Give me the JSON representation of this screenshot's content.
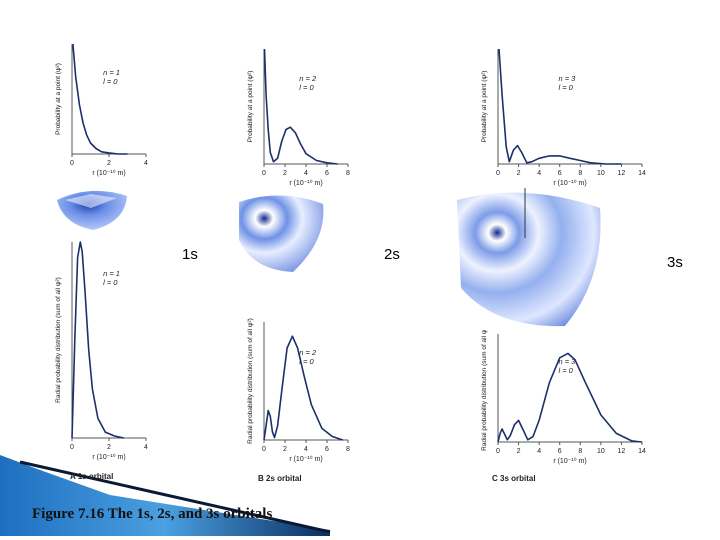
{
  "orbital_titles": {
    "s1": "1s",
    "s2": "2s",
    "s3": "3s"
  },
  "figure_caption": "Figure 7.16 The 1s, 2s, and 3s orbitals",
  "panel_captions": {
    "a_letter": "A",
    "a_text": "1s orbital",
    "b_letter": "B",
    "b_text": "2s orbital",
    "c_letter": "C",
    "c_text": "3s orbital"
  },
  "axis": {
    "prob_ylabel": "Probability at a point (ψ²)",
    "radial_ylabel_1s": "Radial probability distribution (sum of all ψ²)",
    "radial_ylabel_2s": "Radial probability distribution (sum of all ψ²)",
    "radial_ylabel_3s": "Radial probability distribution (sum of all ψ²)",
    "xlabel": "r (10⁻¹⁰ m)"
  },
  "quantum_numbers": {
    "s1": {
      "n": "n = 1",
      "l": "l = 0"
    },
    "s2": {
      "n": "n = 2",
      "l": "l = 0"
    },
    "s3": {
      "n": "n = 3",
      "l": "l = 0"
    }
  },
  "colors": {
    "curve": "#1b2f6b",
    "orbital_light": "#eef2ff",
    "orbital_dark": "#2a53c9",
    "band": "#1e6fc0"
  },
  "chart_data": [
    {
      "id": "prob-1s",
      "type": "line",
      "title": "",
      "xlabel": "r (10⁻¹⁰ m)",
      "ylabel": "Probability at a point (ψ²)",
      "xlim": [
        0,
        4
      ],
      "xticks": [
        0,
        2,
        4
      ],
      "x": [
        0.05,
        0.2,
        0.4,
        0.6,
        0.8,
        1.0,
        1.3,
        1.6,
        2.0,
        2.5,
        3.0
      ],
      "y": [
        1.0,
        0.7,
        0.45,
        0.28,
        0.17,
        0.1,
        0.05,
        0.02,
        0.01,
        0.0,
        0.0
      ]
    },
    {
      "id": "prob-2s",
      "type": "line",
      "title": "",
      "xlabel": "r (10⁻¹⁰ m)",
      "ylabel": "Probability at a point (ψ²)",
      "xlim": [
        0,
        8
      ],
      "xticks": [
        0,
        2,
        4,
        6,
        8
      ],
      "x": [
        0.05,
        0.2,
        0.4,
        0.6,
        0.9,
        1.3,
        1.7,
        2.1,
        2.5,
        3.0,
        3.5,
        4.0,
        5.0,
        6.0,
        7.0
      ],
      "y": [
        1.0,
        0.6,
        0.3,
        0.1,
        0.02,
        0.05,
        0.2,
        0.3,
        0.32,
        0.27,
        0.17,
        0.09,
        0.03,
        0.01,
        0.0
      ]
    },
    {
      "id": "prob-3s",
      "type": "line",
      "title": "",
      "xlabel": "r (10⁻¹⁰ m)",
      "ylabel": "Probability at a point (ψ²)",
      "xlim": [
        0,
        14
      ],
      "xticks": [
        0,
        2,
        4,
        6,
        8,
        10,
        12,
        14
      ],
      "x": [
        0.1,
        0.4,
        0.8,
        1.1,
        1.5,
        1.9,
        2.3,
        2.8,
        3.3,
        4.0,
        5.0,
        6.0,
        7.0,
        8.0,
        9.0,
        10.5,
        12.0
      ],
      "y": [
        1.0,
        0.6,
        0.15,
        0.02,
        0.12,
        0.16,
        0.1,
        0.01,
        0.02,
        0.05,
        0.07,
        0.07,
        0.05,
        0.03,
        0.01,
        0.0,
        0.0
      ]
    },
    {
      "id": "radial-1s",
      "type": "line",
      "title": "",
      "xlabel": "r (10⁻¹⁰ m)",
      "ylabel": "Radial probability distribution (sum of all ψ²)",
      "xlim": [
        0,
        4
      ],
      "xticks": [
        0,
        2,
        4
      ],
      "x": [
        0.0,
        0.15,
        0.3,
        0.45,
        0.55,
        0.7,
        0.9,
        1.1,
        1.4,
        1.8,
        2.3,
        2.8
      ],
      "y": [
        0.0,
        0.5,
        0.92,
        1.0,
        0.95,
        0.75,
        0.45,
        0.25,
        0.1,
        0.03,
        0.01,
        0.0
      ]
    },
    {
      "id": "radial-2s",
      "type": "line",
      "title": "",
      "xlabel": "r (10⁻¹⁰ m)",
      "ylabel": "Radial probability distribution (sum of all ψ²)",
      "xlim": [
        0,
        8
      ],
      "xticks": [
        0,
        2,
        4,
        6,
        8
      ],
      "x": [
        0.0,
        0.2,
        0.4,
        0.6,
        0.8,
        1.0,
        1.3,
        1.7,
        2.2,
        2.7,
        3.2,
        3.8,
        4.5,
        5.5,
        6.5,
        7.5
      ],
      "y": [
        0.0,
        0.12,
        0.25,
        0.2,
        0.07,
        0.02,
        0.12,
        0.42,
        0.78,
        0.88,
        0.78,
        0.55,
        0.3,
        0.1,
        0.03,
        0.0
      ]
    },
    {
      "id": "radial-3s",
      "type": "line",
      "title": "",
      "xlabel": "r (10⁻¹⁰ m)",
      "ylabel": "Radial probability distribution (sum of all ψ²)",
      "xlim": [
        0,
        14
      ],
      "xticks": [
        0,
        2,
        4,
        6,
        8,
        10,
        12,
        14
      ],
      "x": [
        0.0,
        0.2,
        0.4,
        0.6,
        0.9,
        1.2,
        1.6,
        2.0,
        2.4,
        2.9,
        3.4,
        4.0,
        5.0,
        6.0,
        6.8,
        7.5,
        8.5,
        10.0,
        11.5,
        13.0,
        14.0
      ],
      "y": [
        0.0,
        0.08,
        0.12,
        0.08,
        0.02,
        0.06,
        0.16,
        0.2,
        0.12,
        0.02,
        0.05,
        0.2,
        0.55,
        0.78,
        0.82,
        0.76,
        0.55,
        0.25,
        0.08,
        0.01,
        0.0
      ]
    }
  ]
}
